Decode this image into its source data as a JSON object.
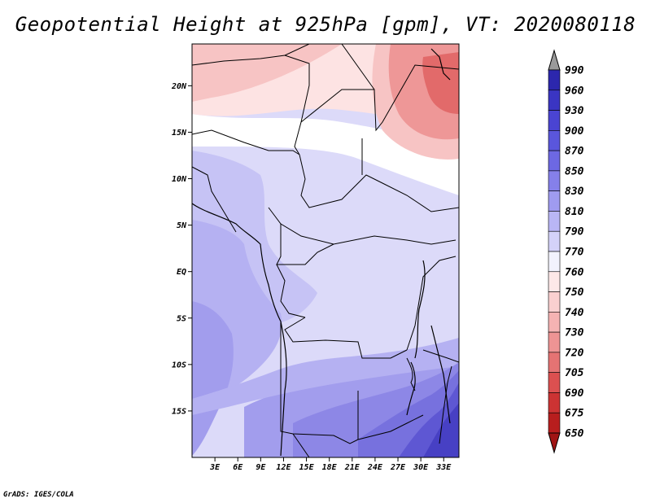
{
  "title": "Geopotential Height at 925hPa [gpm], VT: 2020080118",
  "credit": "GrADS: IGES/COLA",
  "map": {
    "lon_range": [
      0,
      35
    ],
    "lat_range": [
      -20,
      24.5
    ],
    "lon_ticks": [
      "3E",
      "6E",
      "9E",
      "12E",
      "15E",
      "18E",
      "21E",
      "24E",
      "27E",
      "30E",
      "33E"
    ],
    "lon_tick_values": [
      3,
      6,
      9,
      12,
      15,
      18,
      21,
      24,
      27,
      30,
      33
    ],
    "lat_ticks": [
      "20N",
      "15N",
      "10N",
      "5N",
      "EQ",
      "5S",
      "10S",
      "15S"
    ],
    "lat_tick_values": [
      20,
      15,
      10,
      5,
      0,
      -5,
      -10,
      -15
    ]
  },
  "colorbar": {
    "labels": [
      "990",
      "960",
      "930",
      "900",
      "870",
      "850",
      "830",
      "810",
      "790",
      "770",
      "760",
      "750",
      "740",
      "730",
      "720",
      "705",
      "690",
      "675",
      "650"
    ],
    "colors": [
      "#1e1a96",
      "#2c27ad",
      "#3a35c3",
      "#4a44d2",
      "#5a56dc",
      "#6d68e3",
      "#8580ea",
      "#9f9bf0",
      "#b9b6f5",
      "#d4d2f9",
      "#f2f2fd",
      "#fde8e8",
      "#fad0d0",
      "#f5b3b3",
      "#ee9494",
      "#e57373",
      "#dc5050",
      "#cc3333",
      "#b81e1e",
      "#a01414"
    ]
  },
  "fill_colors": {
    "red_strong": "#e26a6a",
    "red_mid": "#ee9797",
    "red_light": "#f7c4c4",
    "pink": "#fde3e3",
    "white": "#ffffff",
    "lav_light": "#dcdaf9",
    "lav": "#c6c3f5",
    "lav_mid": "#b5b1f2",
    "blue_light": "#a29ded",
    "blue_mid": "#8d87e6",
    "blue": "#7771de",
    "blue_dark": "#5e57d3",
    "blue_deep": "#4740c4"
  }
}
